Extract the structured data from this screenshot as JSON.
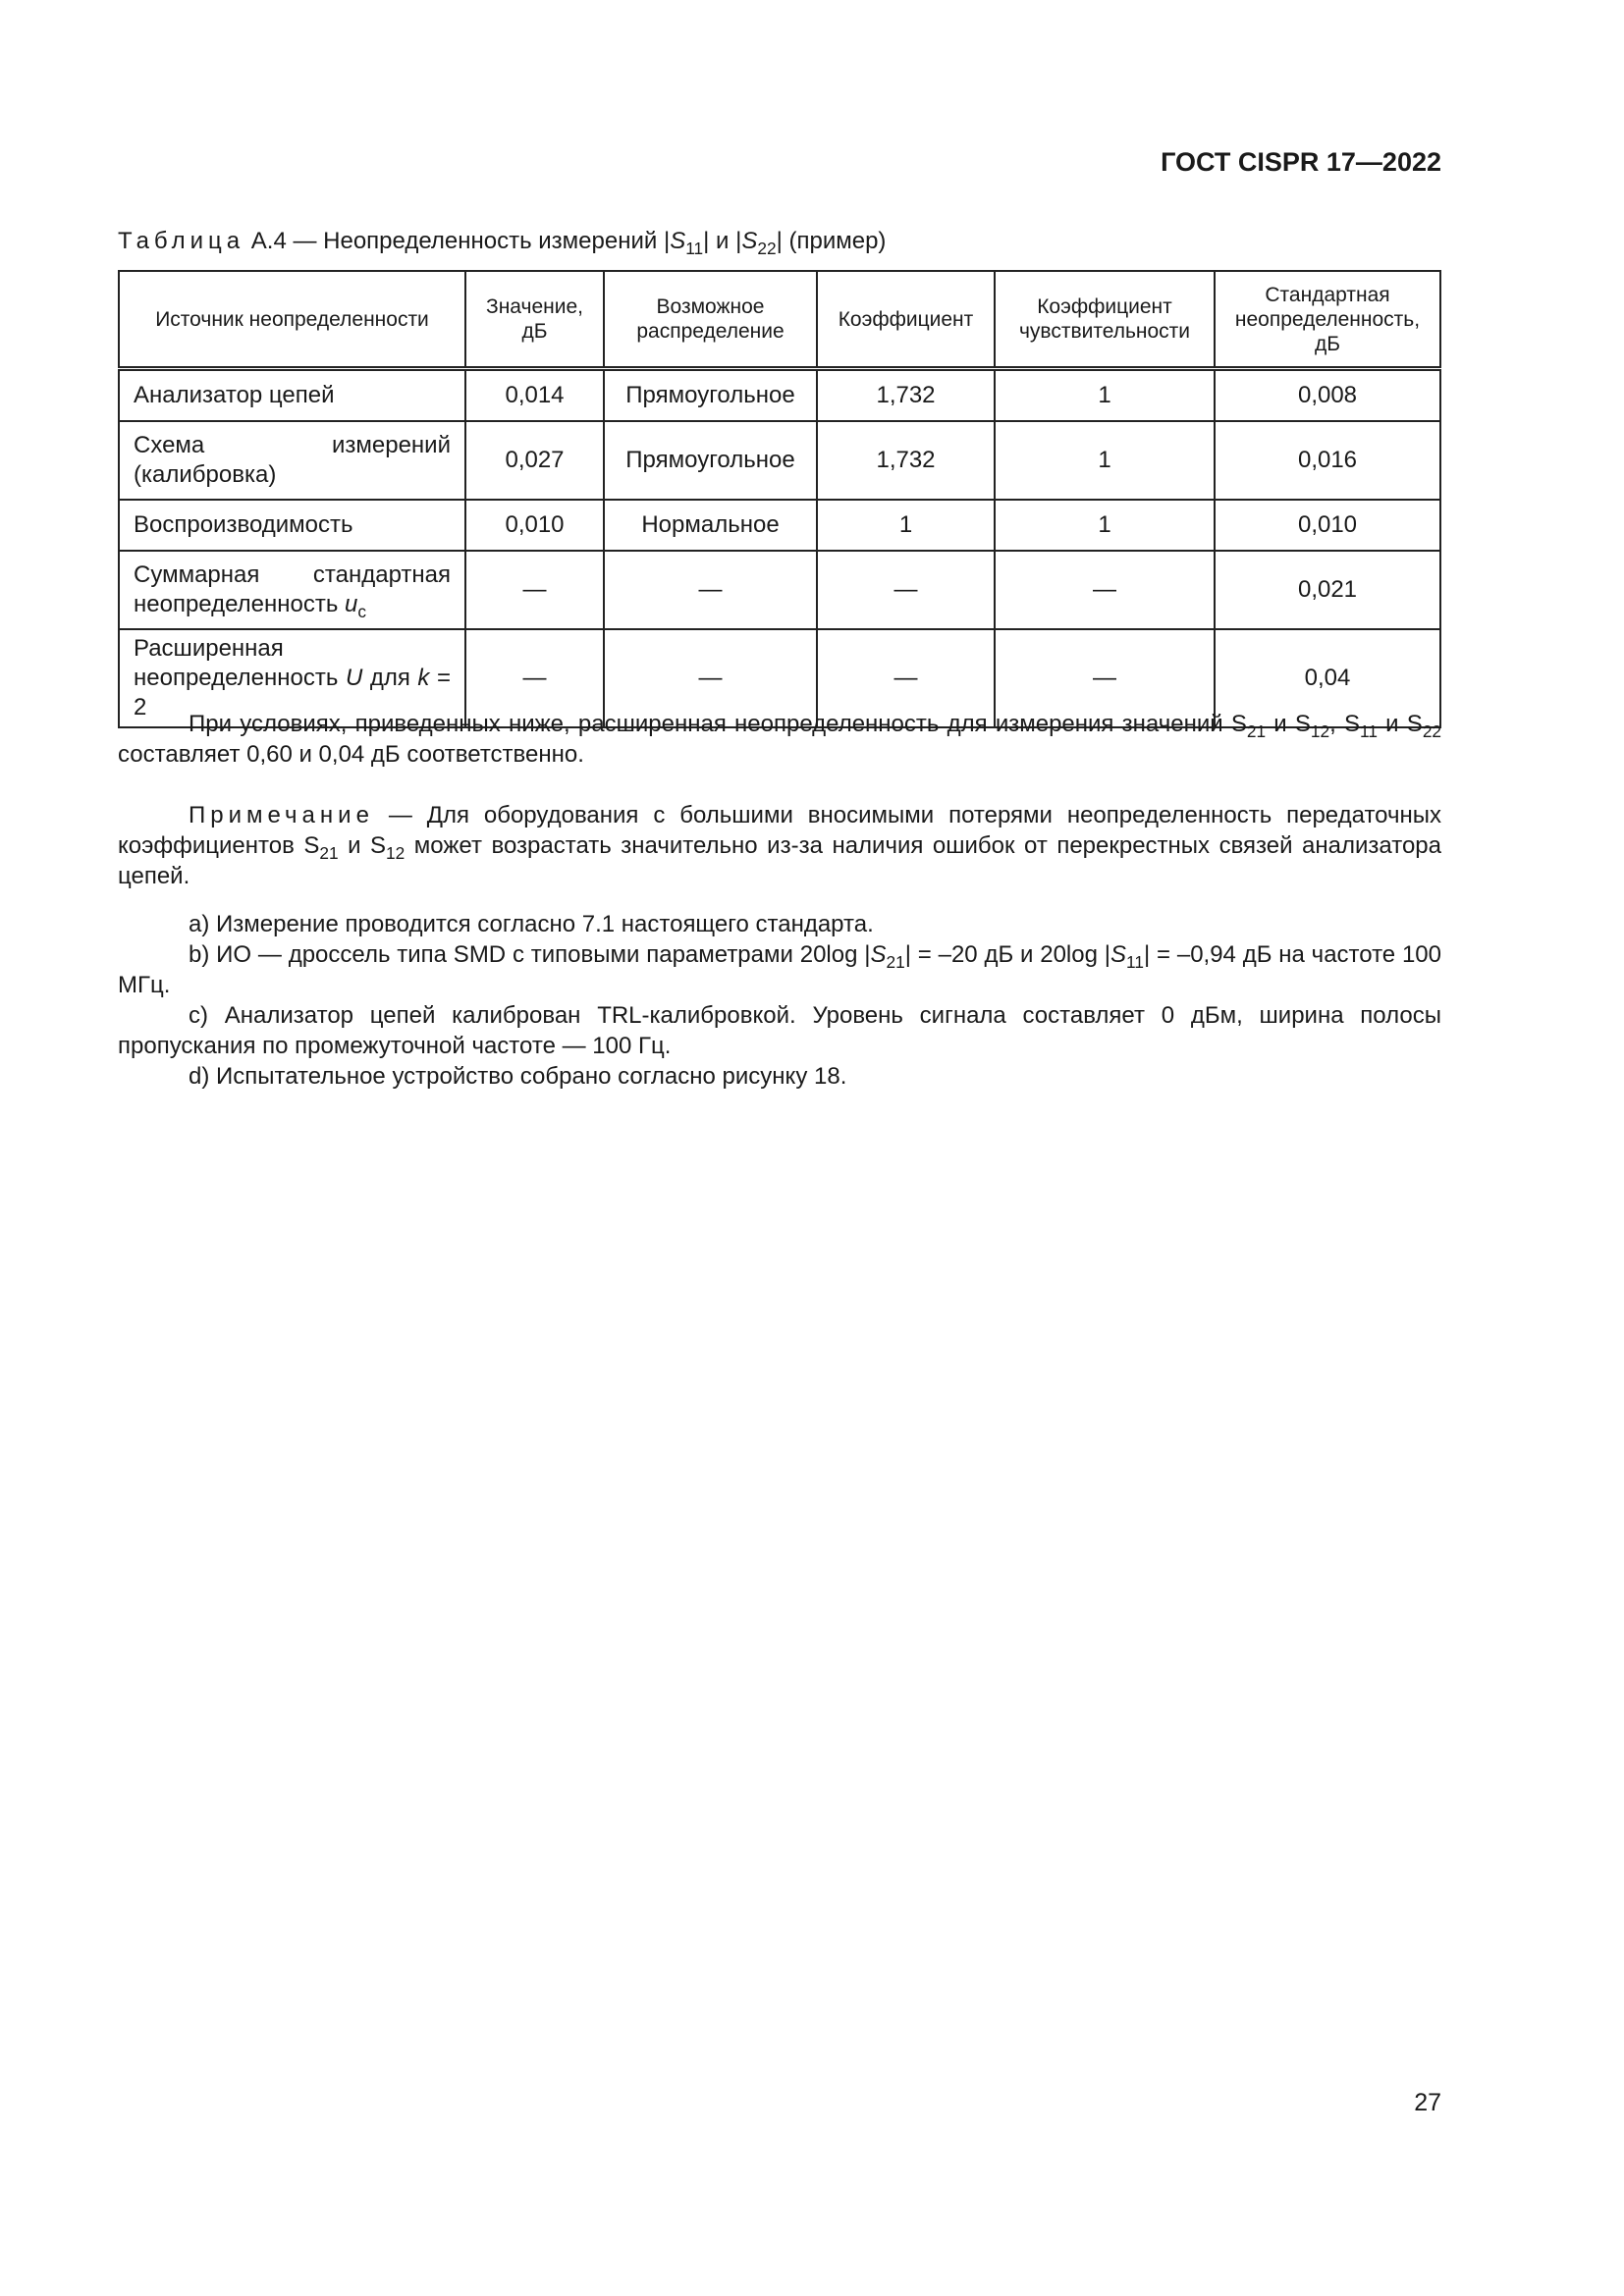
{
  "header": {
    "doc_code": "ГОСТ CISPR 17—2022"
  },
  "caption": {
    "label": "Таблица",
    "rest": [
      {
        "t": " А.4 — Неопределенность измерений |"
      },
      {
        "t": "S",
        "i": true
      },
      {
        "t": "11",
        "sub": true
      },
      {
        "t": "| и |"
      },
      {
        "t": "S",
        "i": true
      },
      {
        "t": "22",
        "sub": true
      },
      {
        "t": "| (пример)"
      }
    ]
  },
  "table": {
    "headers": [
      "Источник неопределенности",
      "Значение, дБ",
      "Возможное распределение",
      "Коэффициент",
      "Коэффициент чувствительности",
      "Стандартная неопределенность, дБ"
    ],
    "rows": [
      {
        "source": [
          {
            "t": "Анализатор цепей"
          }
        ],
        "value": "0,014",
        "distribution": "Прямоугольное",
        "coefficient": "1,732",
        "sensitivity": "1",
        "std": "0,008"
      },
      {
        "source": [
          {
            "t": "Схема измерений (калибровка)"
          }
        ],
        "value": "0,027",
        "distribution": "Прямоугольное",
        "coefficient": "1,732",
        "sensitivity": "1",
        "std": "0,016"
      },
      {
        "source": [
          {
            "t": "Воспроизводимость"
          }
        ],
        "value": "0,010",
        "distribution": "Нормальное",
        "coefficient": "1",
        "sensitivity": "1",
        "std": "0,010"
      },
      {
        "source": [
          {
            "t": "Суммарная стандартная неопределенность "
          },
          {
            "t": "u",
            "i": true
          },
          {
            "t": "c",
            "sub": true
          }
        ],
        "value": "—",
        "distribution": "—",
        "coefficient": "—",
        "sensitivity": "—",
        "std": "0,021"
      },
      {
        "source": [
          {
            "t": "Расширенная неопределенность "
          },
          {
            "t": "U",
            "i": true
          },
          {
            "t": " для "
          },
          {
            "t": "k",
            "i": true
          },
          {
            "t": " = 2"
          }
        ],
        "value": "—",
        "distribution": "—",
        "coefficient": "—",
        "sensitivity": "—",
        "std": "0,04"
      }
    ]
  },
  "paragraph": [
    {
      "t": "При условиях, приведенных ниже, расширенная неопределенность для измерения значений S"
    },
    {
      "t": "21",
      "sub": true
    },
    {
      "t": " и S"
    },
    {
      "t": "12",
      "sub": true
    },
    {
      "t": ", S"
    },
    {
      "t": "11",
      "sub": true
    },
    {
      "t": " и S"
    },
    {
      "t": "22",
      "sub": true
    },
    {
      "t": " составляет 0,60 и 0,04 дБ соответственно."
    }
  ],
  "note": {
    "label": "Примечание",
    "rest": [
      {
        "t": " — Для оборудования с большими вносимыми потерями неопределенность передаточных коэффициентов S"
      },
      {
        "t": "21",
        "sub": true
      },
      {
        "t": " и S"
      },
      {
        "t": "12",
        "sub": true
      },
      {
        "t": " может возрастать значительно из-за наличия ошибок от перекрестных связей анализатора цепей."
      }
    ]
  },
  "list": [
    [
      {
        "t": "a)  Измерение проводится согласно 7.1 настоящего стандарта."
      }
    ],
    [
      {
        "t": "b)  ИО — дроссель типа SMD с типовыми параметрами 20log |"
      },
      {
        "t": "S",
        "i": true
      },
      {
        "t": "21",
        "sub": true
      },
      {
        "t": "| = –20 дБ и 20log |"
      },
      {
        "t": "S",
        "i": true
      },
      {
        "t": "11",
        "sub": true
      },
      {
        "t": "| = –0,94 дБ на частоте 100 МГц."
      }
    ],
    [
      {
        "t": "c)  Анализатор цепей калиброван TRL-калибровкой. Уровень сигнала составляет 0 дБм, ширина полосы пропускания по промежуточной частоте — 100 Гц."
      }
    ],
    [
      {
        "t": "d)  Испытательное устройство собрано согласно рисунку 18."
      }
    ]
  ],
  "page_number": "27"
}
